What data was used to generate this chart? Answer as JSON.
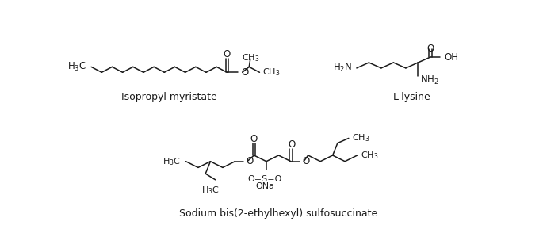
{
  "background_color": "#ffffff",
  "line_color": "#1a1a1a",
  "line_width": 1.1,
  "title1": "Isopropyl myristate",
  "title2": "L-lysine",
  "title3": "Sodium bis(2-ethylhexyl) sulfosuccinate",
  "figsize": [
    6.85,
    3.18
  ],
  "dpi": 100
}
